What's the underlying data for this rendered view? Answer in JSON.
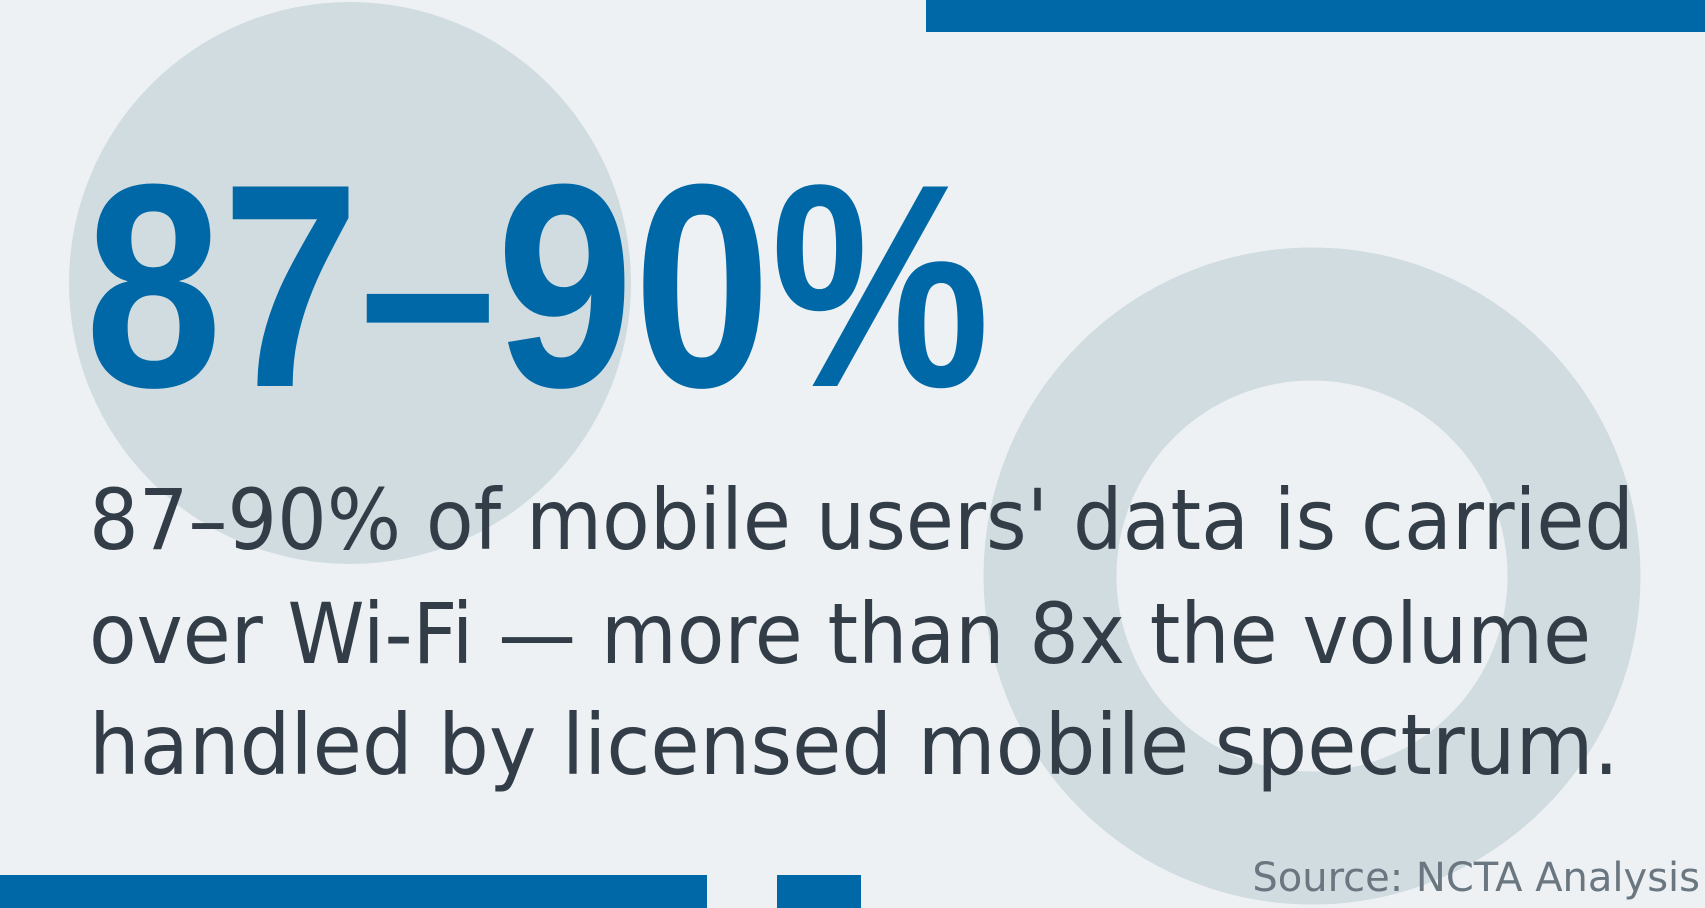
{
  "headline": "87–90%",
  "body": {
    "lines": [
      "87–90% of mobile users' data is carried",
      "over Wi-Fi — more than 8x the volume",
      "handled by licensed mobile spectrum."
    ]
  },
  "source": "Source: NCTA Analysis"
}
